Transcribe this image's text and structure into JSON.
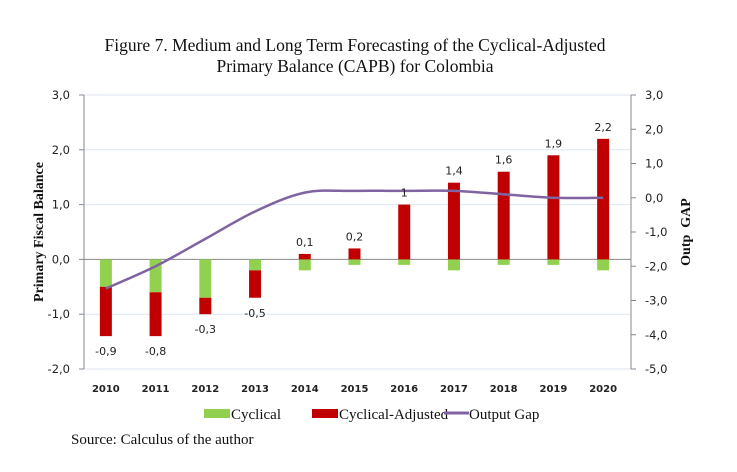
{
  "chart_data": {
    "type": "bar",
    "title_line1": "Figure 7. Medium and Long Term Forecasting of the Cyclical-Adjusted",
    "title_line2": "Primary Balance (CAPB) for Colombia",
    "ylabel": "Primary Fiscal Balance",
    "y2label": "Outp  GAP",
    "categories": [
      "2010",
      "2011",
      "2012",
      "2013",
      "2014",
      "2015",
      "2016",
      "2017",
      "2018",
      "2019",
      "2020"
    ],
    "ylim": [
      -2,
      3
    ],
    "y_ticks": [
      "3,0",
      "2,0",
      "1,0",
      "0,0",
      "-1,0",
      "-2,0"
    ],
    "y_tick_values": [
      3,
      2,
      1,
      0,
      -1,
      -2
    ],
    "y2lim": [
      -5,
      3
    ],
    "y2_ticks": [
      "3,0",
      "2,0",
      "1,0",
      "0,0",
      "-1,0",
      "-2,0",
      "-3,0",
      "-4,0",
      "-5,0"
    ],
    "y2_tick_values": [
      3,
      2,
      1,
      0,
      -1,
      -2,
      -3,
      -4,
      -5
    ],
    "grid": true,
    "legend_position": "bottom",
    "series": [
      {
        "name": "Cyclical",
        "type": "stacked-bar",
        "axis": "left",
        "color": "#92d050",
        "values": [
          -0.5,
          -0.6,
          -0.7,
          -0.2,
          -0.2,
          -0.1,
          -0.1,
          -0.2,
          -0.1,
          -0.1,
          -0.2
        ]
      },
      {
        "name": "Cyclical-Adjusted",
        "type": "stacked-bar",
        "axis": "left",
        "color": "#c00000",
        "values": [
          -0.9,
          -0.8,
          -0.3,
          -0.5,
          0.1,
          0.2,
          1,
          1.4,
          1.6,
          1.9,
          2.2
        ],
        "labels": [
          "-0,9",
          "-0,8",
          "-0,3",
          "-0,5",
          "0,1",
          "0,2",
          "1",
          "1,4",
          "1,6",
          "1,9",
          "2,2"
        ]
      },
      {
        "name": "Output Gap",
        "type": "line",
        "axis": "right",
        "color": "#8064a2",
        "values": [
          -2.65,
          -2.0,
          -1.2,
          -0.4,
          0.15,
          0.2,
          0.2,
          0.2,
          0.1,
          0.0,
          0.0
        ]
      }
    ]
  },
  "source": "Source: Calculus of the author"
}
